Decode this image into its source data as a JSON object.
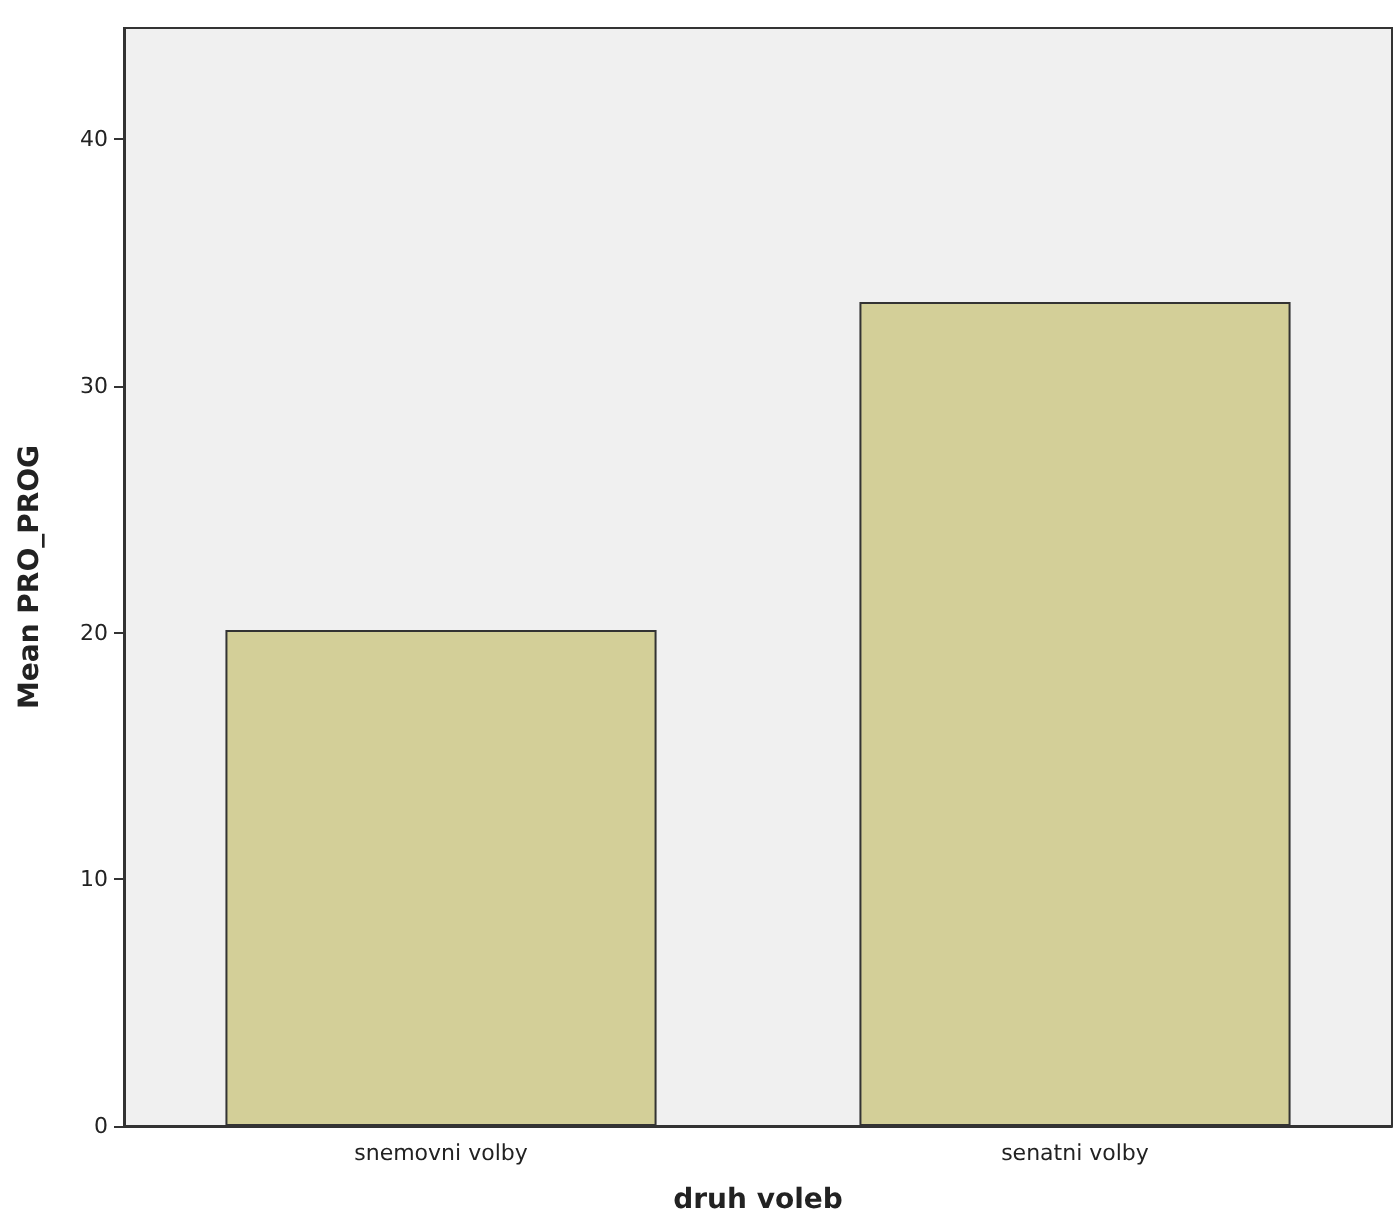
{
  "chart_data": {
    "type": "bar",
    "xlabel": "druh voleb",
    "ylabel": "Mean PRO_PROG",
    "categories": [
      "snemovni volby",
      "senatni volby"
    ],
    "values": [
      20.1,
      33.4
    ],
    "color": "#d3cf98",
    "ylim": [
      0,
      44.5
    ],
    "yticks": [
      0,
      10,
      20,
      30,
      40
    ],
    "grid": false
  }
}
